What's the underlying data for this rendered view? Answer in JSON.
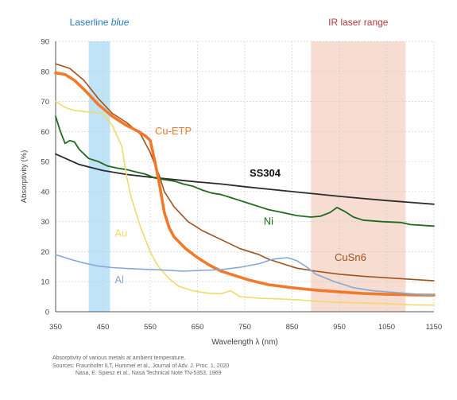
{
  "chart_data": {
    "type": "line",
    "title": "",
    "xlabel": "Wavelength λ (nm)",
    "ylabel": "Absorptivity (%)",
    "xlim": [
      350,
      1150
    ],
    "ylim": [
      0,
      90
    ],
    "xticks": [
      350,
      450,
      550,
      650,
      750,
      850,
      950,
      1050,
      1150
    ],
    "yticks": [
      0,
      10,
      20,
      30,
      40,
      50,
      60,
      70,
      80,
      90
    ],
    "grid": "dotted vertical and horizontal",
    "legend": "none (series labelled directly on the plot)",
    "bands": [
      {
        "label_main": "Laserline ",
        "label_em": "blue",
        "x_range": [
          420,
          465
        ],
        "color": "#bfe3f7",
        "label_color": "#2a7ab8"
      },
      {
        "label_main": "IR laser range",
        "label_em": "",
        "x_range": [
          890,
          1090
        ],
        "color": "#f7dcd2",
        "label_color": "#b5373a"
      }
    ],
    "series": [
      {
        "name": "SS304",
        "color": "#2b2b2b",
        "width": 1.8,
        "points": [
          [
            350,
            52.5
          ],
          [
            400,
            49
          ],
          [
            450,
            47
          ],
          [
            500,
            45.7
          ],
          [
            550,
            44.8
          ],
          [
            600,
            44
          ],
          [
            650,
            43.2
          ],
          [
            700,
            42.5
          ],
          [
            750,
            41.6
          ],
          [
            800,
            40.8
          ],
          [
            850,
            40
          ],
          [
            900,
            39.2
          ],
          [
            950,
            38.4
          ],
          [
            1000,
            37.7
          ],
          [
            1050,
            37
          ],
          [
            1100,
            36.4
          ],
          [
            1150,
            35.8
          ]
        ]
      },
      {
        "name": "Ni",
        "color": "#1e6b1e",
        "width": 1.8,
        "points": [
          [
            350,
            65
          ],
          [
            360,
            60
          ],
          [
            370,
            56
          ],
          [
            380,
            57
          ],
          [
            390,
            56.5
          ],
          [
            400,
            54
          ],
          [
            420,
            51
          ],
          [
            440,
            50
          ],
          [
            460,
            48.5
          ],
          [
            480,
            47.8
          ],
          [
            500,
            47.3
          ],
          [
            520,
            46.5
          ],
          [
            540,
            45.8
          ],
          [
            560,
            44.5
          ],
          [
            580,
            44
          ],
          [
            600,
            43.5
          ],
          [
            620,
            42.5
          ],
          [
            640,
            41.8
          ],
          [
            660,
            40.5
          ],
          [
            680,
            39.5
          ],
          [
            700,
            39
          ],
          [
            720,
            38
          ],
          [
            740,
            37
          ],
          [
            760,
            36
          ],
          [
            780,
            35
          ],
          [
            800,
            34
          ],
          [
            830,
            33
          ],
          [
            860,
            32
          ],
          [
            890,
            31.5
          ],
          [
            910,
            31.8
          ],
          [
            930,
            33
          ],
          [
            945,
            34.7
          ],
          [
            960,
            33.5
          ],
          [
            980,
            31.5
          ],
          [
            1000,
            30.5
          ],
          [
            1040,
            30
          ],
          [
            1080,
            29.7
          ],
          [
            1100,
            29
          ],
          [
            1150,
            28.5
          ]
        ]
      },
      {
        "name": "CuSn6",
        "color": "#a0521e",
        "width": 1.6,
        "points": [
          [
            350,
            82.5
          ],
          [
            380,
            81
          ],
          [
            410,
            77
          ],
          [
            440,
            71
          ],
          [
            470,
            66
          ],
          [
            500,
            63
          ],
          [
            530,
            59
          ],
          [
            550,
            53
          ],
          [
            560,
            49
          ],
          [
            570,
            45
          ],
          [
            580,
            40
          ],
          [
            600,
            35
          ],
          [
            630,
            30
          ],
          [
            660,
            27
          ],
          [
            700,
            24
          ],
          [
            740,
            21
          ],
          [
            780,
            19
          ],
          [
            800,
            17.5
          ],
          [
            830,
            16
          ],
          [
            860,
            14.5
          ],
          [
            900,
            13.5
          ],
          [
            950,
            12.5
          ],
          [
            1000,
            11.8
          ],
          [
            1050,
            11.3
          ],
          [
            1100,
            10.8
          ],
          [
            1150,
            10.3
          ]
        ]
      },
      {
        "name": "Cu-ETP",
        "color": "#f07a2a",
        "width": 3.6,
        "points": [
          [
            350,
            79.5
          ],
          [
            370,
            79
          ],
          [
            390,
            77
          ],
          [
            410,
            74
          ],
          [
            440,
            69
          ],
          [
            470,
            65
          ],
          [
            500,
            62
          ],
          [
            525,
            60
          ],
          [
            540,
            58.5
          ],
          [
            550,
            57
          ],
          [
            560,
            50
          ],
          [
            570,
            42
          ],
          [
            580,
            33
          ],
          [
            590,
            28
          ],
          [
            600,
            25
          ],
          [
            625,
            21
          ],
          [
            650,
            18
          ],
          [
            675,
            15.5
          ],
          [
            700,
            13.5
          ],
          [
            730,
            12
          ],
          [
            760,
            10.5
          ],
          [
            800,
            9
          ],
          [
            850,
            8
          ],
          [
            900,
            7.2
          ],
          [
            950,
            6.6
          ],
          [
            1000,
            6.1
          ],
          [
            1050,
            5.8
          ],
          [
            1100,
            5.6
          ],
          [
            1150,
            5.5
          ]
        ]
      },
      {
        "name": "Au",
        "color": "#f3d96a",
        "width": 1.6,
        "points": [
          [
            350,
            70
          ],
          [
            370,
            68
          ],
          [
            390,
            67
          ],
          [
            420,
            66.5
          ],
          [
            450,
            66
          ],
          [
            470,
            62
          ],
          [
            490,
            55
          ],
          [
            500,
            45
          ],
          [
            510,
            38
          ],
          [
            520,
            33
          ],
          [
            530,
            28
          ],
          [
            540,
            24
          ],
          [
            550,
            20
          ],
          [
            560,
            17
          ],
          [
            570,
            14.5
          ],
          [
            590,
            11
          ],
          [
            610,
            8.5
          ],
          [
            640,
            7
          ],
          [
            670,
            6.2
          ],
          [
            700,
            6
          ],
          [
            720,
            7
          ],
          [
            740,
            5
          ],
          [
            780,
            4.5
          ],
          [
            820,
            4.3
          ],
          [
            860,
            4
          ],
          [
            900,
            3.5
          ],
          [
            940,
            3.2
          ],
          [
            980,
            3
          ],
          [
            1020,
            2.8
          ],
          [
            1060,
            2.6
          ],
          [
            1100,
            2.3
          ],
          [
            1150,
            2.2
          ]
        ]
      },
      {
        "name": "Al",
        "color": "#86a9d3",
        "width": 1.6,
        "points": [
          [
            350,
            19
          ],
          [
            380,
            17.5
          ],
          [
            410,
            16.2
          ],
          [
            440,
            15.2
          ],
          [
            470,
            14.7
          ],
          [
            500,
            14.4
          ],
          [
            530,
            14.2
          ],
          [
            560,
            14
          ],
          [
            590,
            13.8
          ],
          [
            620,
            13.5
          ],
          [
            650,
            13.7
          ],
          [
            700,
            14
          ],
          [
            740,
            14.8
          ],
          [
            780,
            16
          ],
          [
            810,
            17.5
          ],
          [
            840,
            18
          ],
          [
            860,
            17
          ],
          [
            880,
            15
          ],
          [
            900,
            12.5
          ],
          [
            940,
            10
          ],
          [
            980,
            8
          ],
          [
            1020,
            7
          ],
          [
            1060,
            6.5
          ],
          [
            1100,
            6
          ],
          [
            1150,
            5.5
          ]
        ]
      }
    ],
    "series_labels": [
      {
        "text": "SS304",
        "color": "#111111",
        "x": 760,
        "y": 45,
        "bold": true
      },
      {
        "text": "Ni",
        "color": "#1e6b1e",
        "x": 790,
        "y": 29,
        "bold": false
      },
      {
        "text": "Cu-ETP",
        "color": "#f07a2a",
        "x": 560,
        "y": 59,
        "bold": false
      },
      {
        "text": "CuSn6",
        "color": "#a0521e",
        "x": 940,
        "y": 17,
        "bold": false
      },
      {
        "text": "Au",
        "color": "#f3d96a",
        "x": 475,
        "y": 25,
        "bold": false
      },
      {
        "text": "Al",
        "color": "#86a9d3",
        "x": 475,
        "y": 9.5,
        "bold": false
      }
    ]
  },
  "caption": {
    "line1": "Absorptivity of various metals at ambient temperature.",
    "line2": "Sources: Fraunhofer ILT, Hummel et al., Journal of Adv. J. Proc. 1, 2020",
    "line3": "Nasa, E. Spiesz et al., Nasa Technical Note TN-5353, 1969"
  }
}
